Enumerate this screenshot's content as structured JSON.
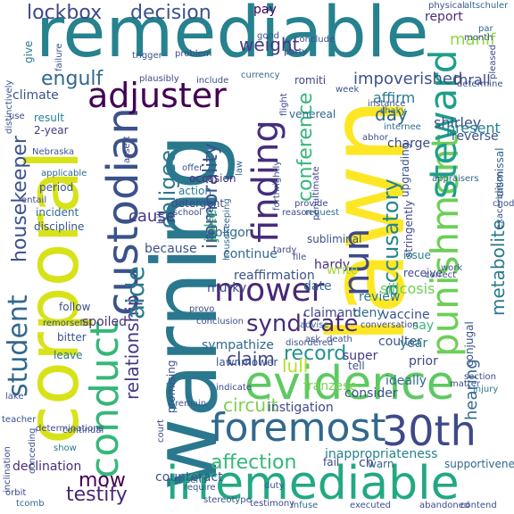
{
  "words": [
    {
      "text": "remediable",
      "color": "#26828e"
    },
    {
      "text": "lawn",
      "color": "#fde725"
    },
    {
      "text": "warning",
      "color": "#2a788e"
    },
    {
      "text": "corporal",
      "color": "#d8e219"
    },
    {
      "text": "foremost",
      "color": "#31688e"
    },
    {
      "text": "irremediable",
      "color": "#22a884"
    },
    {
      "text": "30th",
      "color": "#3e4989"
    },
    {
      "text": "evidence",
      "color": "#5ec962"
    },
    {
      "text": "custodian",
      "color": "#3b528b"
    },
    {
      "text": "conduct",
      "color": "#35b779"
    },
    {
      "text": "punishment",
      "color": "#6ece58"
    },
    {
      "text": "adjuster",
      "color": "#440154"
    },
    {
      "text": "finding",
      "color": "#472d7b"
    },
    {
      "text": "steward",
      "color": "#1f9e89"
    },
    {
      "text": "mower",
      "color": "#482878"
    },
    {
      "text": "nun",
      "color": "#3e4989"
    },
    {
      "text": "student",
      "color": "#31688e"
    },
    {
      "text": "housekeeper",
      "color": "#3b528b"
    },
    {
      "text": "syndicate",
      "color": "#472d7b"
    },
    {
      "text": "obligee",
      "color": "#2a788e"
    },
    {
      "text": "relationship",
      "color": "#443983"
    },
    {
      "text": "accusatory",
      "color": "#26828e"
    },
    {
      "text": "conference",
      "color": "#35b779"
    },
    {
      "text": "lockbox",
      "color": "#3e4989"
    },
    {
      "text": "decision",
      "color": "#3b528b"
    },
    {
      "text": "weight",
      "color": "#443983"
    },
    {
      "text": "engulf",
      "color": "#31688e"
    },
    {
      "text": "aide",
      "color": "#2a788e"
    },
    {
      "text": "immorality",
      "color": "#3b528b"
    },
    {
      "text": "record",
      "color": "#21918c"
    },
    {
      "text": "claim",
      "color": "#3e4989"
    },
    {
      "text": "affection",
      "color": "#35b779"
    },
    {
      "text": "mow",
      "color": "#440154"
    },
    {
      "text": "testify",
      "color": "#482878"
    },
    {
      "text": "hearing",
      "color": "#31688e"
    },
    {
      "text": "metabolite",
      "color": "#2a788e"
    },
    {
      "text": "impoverished",
      "color": "#3b528b"
    },
    {
      "text": "circuit",
      "color": "#7ad151"
    },
    {
      "text": "lull",
      "color": "#b5de2b"
    },
    {
      "text": "cause",
      "color": "#443983"
    },
    {
      "text": "joke",
      "color": "#35b779"
    },
    {
      "text": "day",
      "color": "#31688e"
    },
    {
      "text": "manif",
      "color": "#90d743"
    },
    {
      "text": "shirley",
      "color": "#3b528b"
    },
    {
      "text": "affirm",
      "color": "#2a788e"
    },
    {
      "text": "thrall",
      "color": "#3e4989"
    },
    {
      "text": "pay",
      "color": "#440154"
    },
    {
      "text": "report",
      "color": "#472d7b"
    },
    {
      "text": "present",
      "color": "#26828e"
    },
    {
      "text": "reverse",
      "color": "#3b528b"
    },
    {
      "text": "charge",
      "color": "#3e4989"
    },
    {
      "text": "climate",
      "color": "#3b528b"
    },
    {
      "text": "result",
      "color": "#26828e"
    },
    {
      "text": "2-year",
      "color": "#443983"
    },
    {
      "text": "give",
      "color": "#2a788e"
    },
    {
      "text": "venereal",
      "color": "#31688e"
    },
    {
      "text": "romiti",
      "color": "#3e4989"
    },
    {
      "text": "period",
      "color": "#3b528b"
    },
    {
      "text": "incident",
      "color": "#31688e"
    },
    {
      "text": "discipline",
      "color": "#3b528b"
    },
    {
      "text": "action",
      "color": "#2a788e"
    },
    {
      "text": "detergent",
      "color": "#3e4989"
    },
    {
      "text": "occasion",
      "color": "#472d7b"
    },
    {
      "text": "obligor",
      "color": "#31688e"
    },
    {
      "text": "subliminal",
      "color": "#3b528b"
    },
    {
      "text": "hardy",
      "color": "#472d7b"
    },
    {
      "text": "issue",
      "color": "#26828e"
    },
    {
      "text": "receive",
      "color": "#3e4989"
    },
    {
      "text": "silicosis",
      "color": "#6ece58"
    },
    {
      "text": "review",
      "color": "#2a788e"
    },
    {
      "text": "date",
      "color": "#31688e"
    },
    {
      "text": "write",
      "color": "#a0da39"
    },
    {
      "text": "because",
      "color": "#3b528b"
    },
    {
      "text": "continue",
      "color": "#31688e"
    },
    {
      "text": "reaffirmation",
      "color": "#3b528b"
    },
    {
      "text": "murky",
      "color": "#3e4989"
    },
    {
      "text": "follow",
      "color": "#3b528b"
    },
    {
      "text": "spoiled",
      "color": "#472d7b"
    },
    {
      "text": "bitter",
      "color": "#3b528b"
    },
    {
      "text": "leave",
      "color": "#2a788e"
    },
    {
      "text": "sympathize",
      "color": "#31688e"
    },
    {
      "text": "lawnmower",
      "color": "#3b528b"
    },
    {
      "text": "claimant",
      "color": "#3e4989"
    },
    {
      "text": "deny",
      "color": "#31688e"
    },
    {
      "text": "vaccine",
      "color": "#3b528b"
    },
    {
      "text": "say",
      "color": "#35b779"
    },
    {
      "text": "coulter",
      "color": "#3b528b"
    },
    {
      "text": "super",
      "color": "#443983"
    },
    {
      "text": "year",
      "color": "#2a788e"
    },
    {
      "text": "prior",
      "color": "#3e4989"
    },
    {
      "text": "tell",
      "color": "#3b528b"
    },
    {
      "text": "ideally",
      "color": "#31688e"
    },
    {
      "text": "promising",
      "color": "#3b528b"
    },
    {
      "text": "instigation",
      "color": "#3e4989"
    },
    {
      "text": "franzese",
      "color": "#7ad151"
    },
    {
      "text": "consider",
      "color": "#3b528b"
    },
    {
      "text": "inappropriateness",
      "color": "#26828e"
    },
    {
      "text": "fail",
      "color": "#3e4989"
    },
    {
      "text": "warn",
      "color": "#31688e"
    },
    {
      "text": "counteract",
      "color": "#3b528b"
    },
    {
      "text": "declination",
      "color": "#472d7b"
    },
    {
      "text": "require",
      "color": "#3b528b"
    },
    {
      "text": "duty",
      "color": "#3b528b"
    },
    {
      "text": "ch",
      "color": "#3e4989"
    },
    {
      "text": "continual",
      "color": "#3b528b"
    },
    {
      "text": "show",
      "color": "#2a788e"
    },
    {
      "text": "orbit",
      "color": "#3e4989"
    },
    {
      "text": "tcomb",
      "color": "#31688e"
    },
    {
      "text": "stereotype",
      "color": "#3b528b"
    },
    {
      "text": "testimony",
      "color": "#3e4989"
    },
    {
      "text": "infuse",
      "color": "#31688e"
    },
    {
      "text": "executed",
      "color": "#3b528b"
    },
    {
      "text": "abandoned",
      "color": "#3e4989"
    },
    {
      "text": "contend",
      "color": "#3b528b"
    },
    {
      "text": "supportiveness",
      "color": "#31688e"
    },
    {
      "text": "upgrading",
      "color": "#3b528b"
    },
    {
      "text": "stringently",
      "color": "#3e4989"
    },
    {
      "text": "dismissal",
      "color": "#31688e"
    },
    {
      "text": "conjugal",
      "color": "#3b528b"
    },
    {
      "text": "section",
      "color": "#3e4989"
    },
    {
      "text": "injury",
      "color": "#2a788e"
    },
    {
      "text": "altschuler",
      "color": "#31688e"
    },
    {
      "text": "physical",
      "color": "#3b528b"
    },
    {
      "text": "pleased",
      "color": "#3e4989"
    },
    {
      "text": "month",
      "color": "#3b528b"
    },
    {
      "text": "par",
      "color": "#31688e"
    },
    {
      "text": "conclude",
      "color": "#3b528b"
    },
    {
      "text": "party",
      "color": "#3e4989"
    },
    {
      "text": "trigger",
      "color": "#3b528b"
    },
    {
      "text": "include",
      "color": "#3b528b"
    },
    {
      "text": "plausibly",
      "color": "#3e4989"
    },
    {
      "text": "ask",
      "color": "#3b528b"
    },
    {
      "text": "conversation",
      "color": "#3e4989"
    },
    {
      "text": "advise",
      "color": "#31688e"
    },
    {
      "text": "conclusion",
      "color": "#3b528b"
    },
    {
      "text": "remain",
      "color": "#3b528b"
    },
    {
      "text": "indicate",
      "color": "#3e4989"
    },
    {
      "text": "Nebraska",
      "color": "#3b528b"
    },
    {
      "text": "applicable",
      "color": "#31688e"
    },
    {
      "text": "entail",
      "color": "#3e4989"
    },
    {
      "text": "distinctively",
      "color": "#3b528b"
    },
    {
      "text": "work",
      "color": "#3b528b"
    },
    {
      "text": "correct",
      "color": "#3e4989"
    },
    {
      "text": "chod",
      "color": "#3b528b"
    },
    {
      "text": "appraisers",
      "color": "#31688e"
    },
    {
      "text": "determine",
      "color": "#3b528b"
    },
    {
      "text": "assert",
      "color": "#3e4989"
    },
    {
      "text": "offer",
      "color": "#3b528b"
    },
    {
      "text": "shaky",
      "color": "#31688e"
    },
    {
      "text": "abhor",
      "color": "#3b528b"
    },
    {
      "text": "provide",
      "color": "#3e4989"
    },
    {
      "text": "reason",
      "color": "#3b528b"
    },
    {
      "text": "internee",
      "color": "#31688e"
    },
    {
      "text": "good",
      "color": "#3b528b"
    },
    {
      "text": "problem",
      "color": "#3e4989"
    },
    {
      "text": "week",
      "color": "#3b528b"
    },
    {
      "text": "penultimate",
      "color": "#3e4989"
    },
    {
      "text": "forthrightly",
      "color": "#3b528b"
    },
    {
      "text": "request",
      "color": "#31688e"
    },
    {
      "text": "death",
      "color": "#3b528b"
    },
    {
      "text": "use",
      "color": "#3e4989"
    },
    {
      "text": "teacher",
      "color": "#3b528b"
    },
    {
      "text": "determinations",
      "color": "#3e4989"
    },
    {
      "text": "remorseful",
      "color": "#3b528b"
    },
    {
      "text": "inclination",
      "color": "#3e4989"
    },
    {
      "text": "conceding",
      "color": "#3b528b"
    },
    {
      "text": "housekeeping",
      "color": "#31688e"
    },
    {
      "text": "appellee",
      "color": "#3b528b"
    },
    {
      "text": "school",
      "color": "#3e4989"
    },
    {
      "text": "failure",
      "color": "#3b528b"
    },
    {
      "text": "law",
      "color": "#31688e"
    },
    {
      "text": "provo",
      "color": "#3e4989"
    },
    {
      "text": "instance",
      "color": "#3b528b"
    },
    {
      "text": "flight",
      "color": "#3e4989"
    },
    {
      "text": "exacerbation",
      "color": "#3b528b"
    },
    {
      "text": "bill",
      "color": "#3e4989"
    },
    {
      "text": "disordered",
      "color": "#3b528b"
    },
    {
      "text": "currency",
      "color": "#31688e"
    },
    {
      "text": "tardy",
      "color": "#3e4989"
    },
    {
      "text": "file",
      "color": "#3b528b"
    },
    {
      "text": "lake",
      "color": "#3b528b"
    },
    {
      "text": "court",
      "color": "#3e4989"
    },
    {
      "text": "send",
      "color": "#31688e"
    },
    {
      "text": "matter",
      "color": "#3b528b"
    }
  ]
}
